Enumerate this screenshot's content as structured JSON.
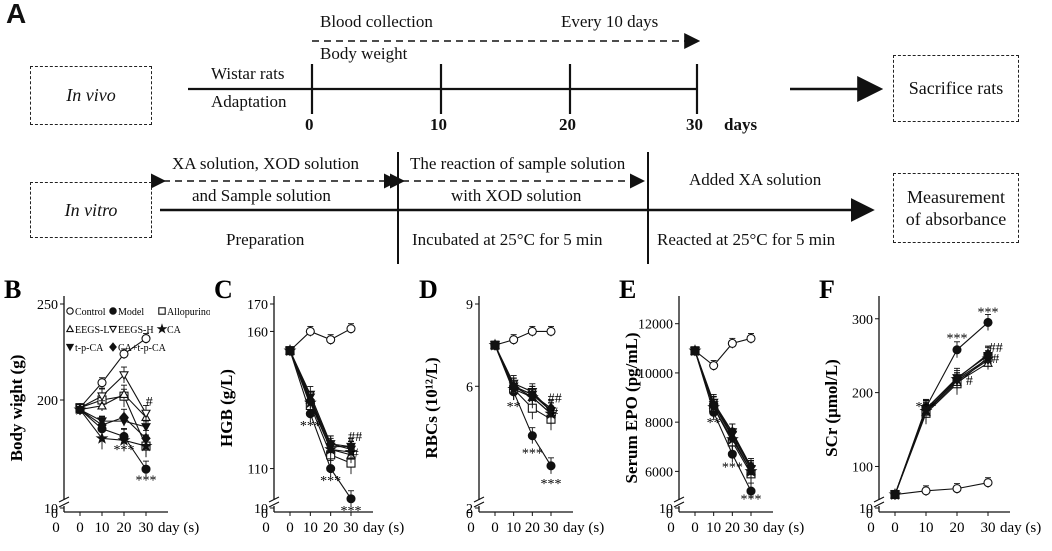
{
  "panel_a": {
    "letter": "A",
    "invivo": {
      "box": "In vivo",
      "blood": "Blood collection",
      "every": "Every 10 days",
      "bodyweight": "Body weight",
      "rats": "Wistar rats",
      "adapt": "Adaptation",
      "ticks": [
        "0",
        "10",
        "20",
        "30"
      ],
      "days": "days",
      "sacrifice": "Sacrifice rats"
    },
    "invitro": {
      "box": "In vitro",
      "sol1": "XA solution, XOD solution",
      "sol2": "and Sample solution",
      "prep": "Preparation",
      "react1": "The reaction of sample solution",
      "react2": "with XOD solution",
      "incub": "Incubated at 25°C for 5 min",
      "added": "Added XA solution",
      "reacted": "Reacted at 25°C for 5 min",
      "measure1": "Measurement",
      "measure2": "of absorbance"
    }
  },
  "legend": [
    {
      "name": "Control",
      "marker": "circle-open"
    },
    {
      "name": "Model",
      "marker": "circle-filled"
    },
    {
      "name": "Allopurinol",
      "marker": "square-open"
    },
    {
      "name": "EEGS-L",
      "marker": "triangle-open"
    },
    {
      "name": "EEGS-H",
      "marker": "triangle-down-open"
    },
    {
      "name": "CA",
      "marker": "star-filled"
    },
    {
      "name": "t-p-CA",
      "marker": "triangle-down-filled"
    },
    {
      "name": "CA+t-p-CA",
      "marker": "diamond-filled"
    }
  ],
  "chart_data": [
    {
      "id": "B",
      "type": "line",
      "ylabel": "Body wight (g)",
      "xlabel": "day (s)",
      "x": [
        0,
        10,
        20,
        30
      ],
      "yticks": [
        10,
        200,
        250
      ],
      "ylim": [
        150,
        250
      ],
      "axis_break": true,
      "series": [
        {
          "name": "Control",
          "values": [
            196,
            209,
            224,
            232
          ]
        },
        {
          "name": "Model",
          "values": [
            195,
            185,
            181,
            164
          ]
        },
        {
          "name": "Allopurinol",
          "values": [
            196,
            200,
            202,
            176
          ]
        },
        {
          "name": "EEGS-L",
          "values": [
            195,
            197,
            203,
            191
          ]
        },
        {
          "name": "EEGS-H",
          "values": [
            196,
            202,
            213,
            193
          ]
        },
        {
          "name": "CA",
          "values": [
            195,
            180,
            179,
            176
          ]
        },
        {
          "name": "t-p-CA",
          "values": [
            195,
            189,
            189,
            186
          ]
        },
        {
          "name": "CA+t-p-CA",
          "values": [
            195,
            187,
            191,
            180
          ]
        }
      ],
      "annotations": [
        {
          "text": "***",
          "x": 20,
          "y": 172
        },
        {
          "text": "***",
          "x": 30,
          "y": 156
        },
        {
          "text": "#",
          "x": 31.5,
          "y": 197
        }
      ]
    },
    {
      "id": "C",
      "type": "line",
      "ylabel": "HGB (g/L)",
      "xlabel": "day (s)",
      "x": [
        0,
        10,
        20,
        30
      ],
      "yticks": [
        10,
        110,
        160,
        170
      ],
      "ylim": [
        100,
        170
      ],
      "axis_break": true,
      "series": [
        {
          "name": "Control",
          "values": [
            153,
            160,
            157,
            161
          ]
        },
        {
          "name": "Model",
          "values": [
            153,
            130,
            110,
            99
          ]
        },
        {
          "name": "Allopurinol",
          "values": [
            153,
            133,
            115,
            112
          ]
        },
        {
          "name": "EEGS-L",
          "values": [
            153,
            135,
            117,
            115
          ]
        },
        {
          "name": "EEGS-H",
          "values": [
            153,
            137,
            119,
            117
          ]
        },
        {
          "name": "CA",
          "values": [
            153,
            134,
            117,
            116
          ]
        },
        {
          "name": "t-p-CA",
          "values": [
            153,
            136,
            118,
            118
          ]
        },
        {
          "name": "CA+t-p-CA",
          "values": [
            153,
            135,
            119,
            118
          ]
        }
      ],
      "annotations": [
        {
          "text": "***",
          "x": 10,
          "y": 124
        },
        {
          "text": "***",
          "x": 20,
          "y": 104
        },
        {
          "text": "***",
          "x": 30,
          "y": 93
        },
        {
          "text": "##",
          "x": 32,
          "y": 120
        },
        {
          "text": "#",
          "x": 32,
          "y": 114
        }
      ]
    },
    {
      "id": "D",
      "type": "line",
      "ylabel": "RBCs (10¹²/L)",
      "xlabel": "day (s)",
      "x": [
        0,
        10,
        20,
        30
      ],
      "yticks": [
        2,
        6,
        9
      ],
      "ylim": [
        2,
        9
      ],
      "axis_break": true,
      "series": [
        {
          "name": "Control",
          "values": [
            7.5,
            7.7,
            8.0,
            8.0
          ]
        },
        {
          "name": "Model",
          "values": [
            7.5,
            5.8,
            4.2,
            3.1
          ]
        },
        {
          "name": "Allopurinol",
          "values": [
            7.5,
            5.9,
            5.2,
            4.8
          ]
        },
        {
          "name": "EEGS-L",
          "values": [
            7.5,
            6.0,
            5.6,
            5.0
          ]
        },
        {
          "name": "EEGS-H",
          "values": [
            7.5,
            6.1,
            5.8,
            5.1
          ]
        },
        {
          "name": "CA",
          "values": [
            7.5,
            5.9,
            5.6,
            5.0
          ]
        },
        {
          "name": "t-p-CA",
          "values": [
            7.5,
            6.0,
            5.7,
            5.1
          ]
        },
        {
          "name": "CA+t-p-CA",
          "values": [
            7.5,
            6.0,
            5.7,
            5.2
          ]
        }
      ],
      "annotations": [
        {
          "text": "**",
          "x": 10,
          "y": 5.1
        },
        {
          "text": "***",
          "x": 20,
          "y": 3.4
        },
        {
          "text": "***",
          "x": 30,
          "y": 2.3
        },
        {
          "text": "##",
          "x": 32,
          "y": 5.4
        },
        {
          "text": "#",
          "x": 32,
          "y": 4.9
        }
      ]
    },
    {
      "id": "E",
      "type": "line",
      "ylabel": "Serum EPO (pg/mL)",
      "xlabel": "day (s)",
      "x": [
        0,
        10,
        20,
        30
      ],
      "yticks": [
        10,
        6000,
        8000,
        10000,
        12000
      ],
      "ylim": [
        5000,
        12800
      ],
      "axis_break": true,
      "series": [
        {
          "name": "Control",
          "values": [
            10900,
            10300,
            11200,
            11400
          ]
        },
        {
          "name": "Model",
          "values": [
            10900,
            8400,
            6700,
            5200
          ]
        },
        {
          "name": "Allopurinol",
          "values": [
            10900,
            8600,
            7200,
            5900
          ]
        },
        {
          "name": "EEGS-L",
          "values": [
            10900,
            8700,
            7400,
            6000
          ]
        },
        {
          "name": "EEGS-H",
          "values": [
            10900,
            8800,
            7600,
            6100
          ]
        },
        {
          "name": "CA",
          "values": [
            10900,
            8600,
            7300,
            6000
          ]
        },
        {
          "name": "t-p-CA",
          "values": [
            10900,
            8700,
            7500,
            6100
          ]
        },
        {
          "name": "CA+t-p-CA",
          "values": [
            10900,
            8700,
            7600,
            6200
          ]
        }
      ],
      "annotations": [
        {
          "text": "**",
          "x": 10,
          "y": 7800
        },
        {
          "text": "***",
          "x": 20,
          "y": 6000
        },
        {
          "text": "***",
          "x": 30,
          "y": 4700
        }
      ]
    },
    {
      "id": "F",
      "type": "line",
      "ylabel": "SCr (μmol/L)",
      "xlabel": "day (s)",
      "x": [
        0,
        10,
        20,
        30
      ],
      "yticks": [
        10,
        100,
        200,
        300
      ],
      "ylim": [
        60,
        320
      ],
      "axis_break": true,
      "series": [
        {
          "name": "Control",
          "values": [
            62,
            67,
            70,
            78
          ]
        },
        {
          "name": "Model",
          "values": [
            62,
            180,
            258,
            295
          ]
        },
        {
          "name": "Allopurinol",
          "values": [
            62,
            172,
            212,
            248
          ]
        },
        {
          "name": "EEGS-L",
          "values": [
            62,
            174,
            214,
            240
          ]
        },
        {
          "name": "EEGS-H",
          "values": [
            62,
            176,
            216,
            244
          ]
        },
        {
          "name": "CA",
          "values": [
            62,
            175,
            218,
            246
          ]
        },
        {
          "name": "t-p-CA",
          "values": [
            62,
            178,
            220,
            250
          ]
        },
        {
          "name": "CA+t-p-CA",
          "values": [
            62,
            178,
            219,
            252
          ]
        }
      ],
      "annotations": [
        {
          "text": "***",
          "x": 10,
          "y": 175
        },
        {
          "text": "***",
          "x": 20,
          "y": 268
        },
        {
          "text": "***",
          "x": 30,
          "y": 303
        },
        {
          "text": "##",
          "x": 32.5,
          "y": 255
        },
        {
          "text": "#",
          "x": 32.5,
          "y": 240
        },
        {
          "text": "#",
          "x": 24,
          "y": 210
        }
      ]
    }
  ]
}
